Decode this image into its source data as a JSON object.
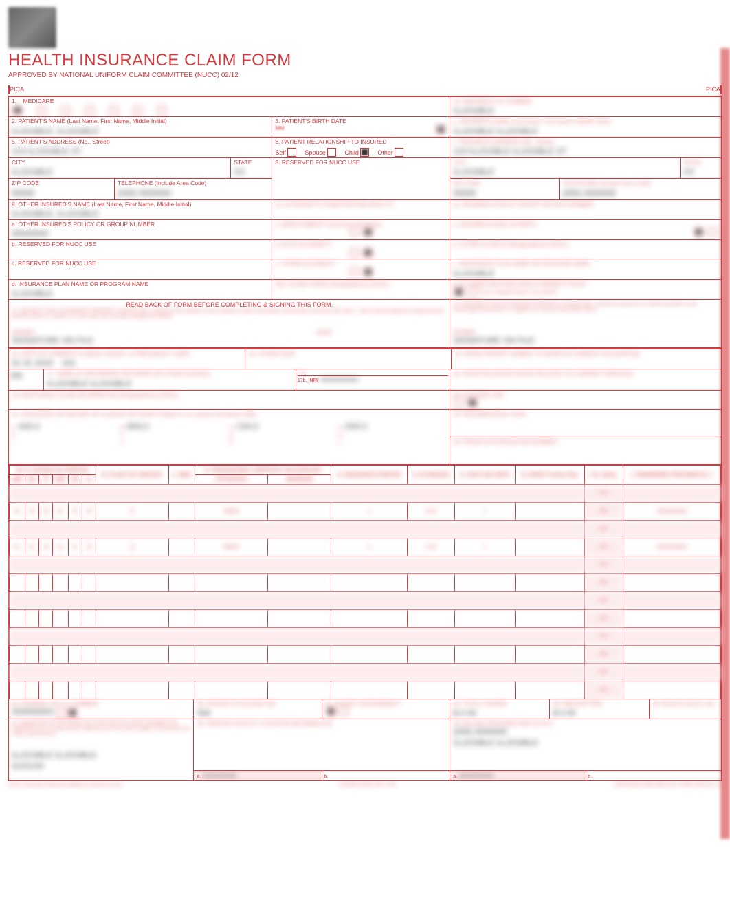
{
  "colors": {
    "red": "#d73a3e",
    "pink": "#fce8e9",
    "text": "#222222",
    "bg": "#ffffff"
  },
  "header": {
    "title": "HEALTH INSURANCE CLAIM FORM",
    "subtitle": "APPROVED BY NATIONAL UNIFORM CLAIM COMMITTEE (NUCC) 02/12",
    "pica": "PICA"
  },
  "box1": {
    "label": "1.",
    "medicare": "MEDICARE",
    "medicaid": "MEDICAID",
    "tricare": "TRICARE",
    "champva": "CHAMPVA",
    "group": "GROUP HEALTH PLAN",
    "feca": "FECA BLK LUNG",
    "other": "OTHER",
    "medicare_sub": "(Medicare #)",
    "medicaid_sub": "(Medicaid #)",
    "tricare_sub": "(ID#/DoD#)",
    "champva_sub": "(Member ID#)",
    "group_sub": "(ID#)",
    "feca_sub": "(ID#)",
    "other_sub": "(ID#)",
    "checked": "medicare"
  },
  "box1a": {
    "label": "1a. INSURED'S I.D. NUMBER",
    "sub": "(For Program in Item 1)",
    "value": "ILLEGIBLE"
  },
  "box2": {
    "label": "2. PATIENT'S NAME (Last Name, First Name, Middle Initial)",
    "value": "ILLEGIBLE, ILLEGIBLE"
  },
  "box3": {
    "label": "3. PATIENT'S BIRTH DATE",
    "mm": "MM",
    "dd": "DD",
    "yy": "YY",
    "sex": "SEX",
    "m": "M",
    "f": "F",
    "value_mm": "01",
    "value_dd": "01",
    "value_yy": "1950",
    "checked": "m"
  },
  "box4": {
    "label": "4. INSURED'S NAME (Last Name, First Name, Middle Initial)",
    "value": "ILLEGIBLE ILLEGIBLE"
  },
  "box5": {
    "label": "5. PATIENT'S ADDRESS (No., Street)",
    "value": "123 ILLEGIBLE ST",
    "city_lbl": "CITY",
    "state_lbl": "STATE",
    "city": "ILLEGIBLE",
    "state": "XX",
    "zip_lbl": "ZIP CODE",
    "tel_lbl": "TELEPHONE (Include Area Code)",
    "zip": "00000",
    "tel_area": "(000)",
    "tel": "0000000"
  },
  "box6": {
    "label": "6. PATIENT RELATIONSHIP TO INSURED",
    "self": "Self",
    "spouse": "Spouse",
    "child": "Child",
    "other": "Other",
    "checked": "child"
  },
  "box7": {
    "label": "7. INSURED'S ADDRESS (No., Street)",
    "value": "123 ILLEGIBLE ILLEGIBLE ST",
    "city_lbl": "CITY",
    "state_lbl": "STATE",
    "city": "ILLEGIBLE",
    "state": "XX",
    "zip_lbl": "ZIP CODE",
    "tel_lbl": "TELEPHONE (Include Area Code)",
    "zip": "00000",
    "tel_area": "(000)",
    "tel": "0000000"
  },
  "box8": {
    "label": "8. RESERVED FOR NUCC USE"
  },
  "box9": {
    "label": "9. OTHER INSURED'S NAME (Last Name, First Name, Middle Initial)",
    "value": "ILLEGIBLE, ILLEGIBLE"
  },
  "box9a": {
    "label": "a. OTHER INSURED'S POLICY OR GROUP NUMBER",
    "value": "00000000"
  },
  "box9b": {
    "label": "b. RESERVED FOR NUCC USE"
  },
  "box9c": {
    "label": "c. RESERVED FOR NUCC USE"
  },
  "box9d": {
    "label": "d. INSURANCE PLAN NAME OR PROGRAM NAME",
    "value": "ILLEGIBLE"
  },
  "box10": {
    "label": "10. IS PATIENT'S CONDITION RELATED TO:",
    "a": "a. EMPLOYMENT? (Current or Previous)",
    "b": "b. AUTO ACCIDENT?",
    "c": "c. OTHER ACCIDENT?",
    "yes": "YES",
    "no": "NO",
    "place": "PLACE (State)",
    "a_chk": "no",
    "b_chk": "no",
    "c_chk": "no",
    "d": "10d. CLAIM CODES (Designated by NUCC)"
  },
  "box11": {
    "label": "11. INSURED'S POLICY GROUP OR FECA NUMBER",
    "value": "",
    "a": "a. INSURED'S DATE OF BIRTH",
    "sex": "SEX",
    "b": "b. OTHER CLAIM ID (Designated by NUCC)",
    "c": "c. INSURANCE PLAN NAME OR PROGRAM NAME",
    "c_val": "ILLEGIBLE",
    "d": "d. IS THERE ANOTHER HEALTH BENEFIT PLAN?",
    "d_sub": "If yes, complete items 9, 9a, and 9d.",
    "d_chk": "yes"
  },
  "box12": {
    "header": "READ BACK OF FORM BEFORE COMPLETING & SIGNING THIS FORM.",
    "label": "12. PATIENT'S OR AUTHORIZED PERSON'S SIGNATURE I authorize the release of any medical or other information necessary to process this claim. I also request payment of government benefits either to myself or to the party who accepts assignment below.",
    "signed": "SIGNED",
    "date": "DATE",
    "sig_val": "SIGNATURE ON FILE",
    "date_val": ""
  },
  "box13": {
    "label": "13. INSURED'S OR AUTHORIZED PERSON'S SIGNATURE I authorize payment of medical benefits to the undersigned physician or supplier for services described below.",
    "signed": "SIGNED",
    "sig_val": "SIGNATURE ON FILE"
  },
  "box14": {
    "label": "14. DATE OF CURRENT ILLNESS, INJURY, or PREGNANCY (LMP)",
    "mm": "01",
    "dd": "01",
    "yy": "2020",
    "qual": "QUAL",
    "qual_val": "431"
  },
  "box15": {
    "label": "15. OTHER DATE",
    "qual": "QUAL"
  },
  "box16": {
    "label": "16. DATES PATIENT UNABLE TO WORK IN CURRENT OCCUPATION",
    "from": "FROM",
    "to": "TO"
  },
  "box17": {
    "label": "17. NAME OF REFERRING PROVIDER OR OTHER SOURCE",
    "prefix": "DN",
    "value": "ILLEGIBLE ILLEGIBLE",
    "a": "17a.",
    "b": "17b.",
    "npi": "NPI",
    "npi_val": "0000000000"
  },
  "box18": {
    "label": "18. HOSPITALIZATION DATES RELATED TO CURRENT SERVICES",
    "from": "FROM",
    "to": "TO"
  },
  "box19": {
    "label": "19. ADDITIONAL CLAIM INFORMATION (Designated by NUCC)"
  },
  "box20": {
    "label": "20. OUTSIDE LAB?",
    "yes": "YES",
    "no": "NO",
    "charges": "$ CHARGES",
    "chk": "no"
  },
  "box21": {
    "label": "21. DIAGNOSIS OR NATURE OF ILLNESS OR INJURY Relate A-L to service line below (24E)",
    "icd": "ICD Ind.",
    "icd_val": "0",
    "codes": {
      "A": "A00.0",
      "B": "B00.0",
      "C": "C00.0",
      "D": "D00.0",
      "E": "",
      "F": "",
      "G": "",
      "H": "",
      "I": "",
      "J": "",
      "K": "",
      "L": ""
    }
  },
  "box22": {
    "label": "22. RESUBMISSION CODE",
    "orig": "ORIGINAL REF. NO."
  },
  "box23": {
    "label": "23. PRIOR AUTHORIZATION NUMBER",
    "value": ""
  },
  "box24": {
    "headers": {
      "a": "24. A. DATE(S) OF SERVICE",
      "from": "From",
      "to": "To",
      "b": "B. PLACE OF SERVICE",
      "c": "C. EMG",
      "d": "D. PROCEDURES, SERVICES, OR SUPPLIES",
      "d2": "(Explain Unusual Circumstances)",
      "cpt": "CPT/HCPCS",
      "mod": "MODIFIER",
      "e": "E. DIAGNOSIS POINTER",
      "f": "F. $ CHARGES",
      "g": "G. DAYS OR UNITS",
      "h": "H. EPSDT Family Plan",
      "i": "I. ID. QUAL.",
      "j": "J. RENDERING PROVIDER ID. #",
      "mm": "MM",
      "dd": "DD",
      "yy": "YY"
    },
    "rows": [
      {
        "from_mm": "01",
        "from_dd": "01",
        "from_yy": "20",
        "to_mm": "01",
        "to_dd": "01",
        "to_yy": "20",
        "pos": "11",
        "emg": "",
        "cpt": "99000",
        "mod": "",
        "dx": "A",
        "chg": "0 00",
        "units": "1",
        "npi": "NPI",
        "render": "0000000000"
      },
      {
        "from_mm": "01",
        "from_dd": "01",
        "from_yy": "20",
        "to_mm": "01",
        "to_dd": "01",
        "to_yy": "20",
        "pos": "11",
        "emg": "",
        "cpt": "99000",
        "mod": "",
        "dx": "A",
        "chg": "0 00",
        "units": "1",
        "npi": "NPI",
        "render": "0000000000"
      },
      {
        "from_mm": "",
        "from_dd": "",
        "from_yy": "",
        "to_mm": "",
        "to_dd": "",
        "to_yy": "",
        "pos": "",
        "emg": "",
        "cpt": "",
        "mod": "",
        "dx": "",
        "chg": "",
        "units": "",
        "npi": "NPI",
        "render": ""
      },
      {
        "from_mm": "",
        "from_dd": "",
        "from_yy": "",
        "to_mm": "",
        "to_dd": "",
        "to_yy": "",
        "pos": "",
        "emg": "",
        "cpt": "",
        "mod": "",
        "dx": "",
        "chg": "",
        "units": "",
        "npi": "NPI",
        "render": ""
      },
      {
        "from_mm": "",
        "from_dd": "",
        "from_yy": "",
        "to_mm": "",
        "to_dd": "",
        "to_yy": "",
        "pos": "",
        "emg": "",
        "cpt": "",
        "mod": "",
        "dx": "",
        "chg": "",
        "units": "",
        "npi": "NPI",
        "render": ""
      },
      {
        "from_mm": "",
        "from_dd": "",
        "from_yy": "",
        "to_mm": "",
        "to_dd": "",
        "to_yy": "",
        "pos": "",
        "emg": "",
        "cpt": "",
        "mod": "",
        "dx": "",
        "chg": "",
        "units": "",
        "npi": "NPI",
        "render": ""
      }
    ]
  },
  "box25": {
    "label": "25. FEDERAL TAX I.D. NUMBER",
    "ssn": "SSN",
    "ein": "EIN",
    "value": "000000000",
    "chk": "ein"
  },
  "box26": {
    "label": "26. PATIENT'S ACCOUNT NO.",
    "value": "000"
  },
  "box27": {
    "label": "27. ACCEPT ASSIGNMENT?",
    "sub": "(For govt. claims, see back)",
    "yes": "YES",
    "no": "NO",
    "chk": "yes"
  },
  "box28": {
    "label": "28. TOTAL CHARGE",
    "value": "$ 0 00"
  },
  "box29": {
    "label": "29. AMOUNT PAID",
    "value": "$ 0 00"
  },
  "box30": {
    "label": "30. Rsvd for NUCC Use"
  },
  "box31": {
    "label": "31. SIGNATURE OF PHYSICIAN OR SUPPLIER INCLUDING DEGREES OR CREDENTIALS (I certify that the statements on the reverse apply to this bill and are made a part thereof.)",
    "sig": "ILLEGIBLE ILLEGIBLE",
    "date": "01/01/20"
  },
  "box32": {
    "label": "32. SERVICE FACILITY LOCATION INFORMATION",
    "a": "a.",
    "b": "b.",
    "npi": "0000000000"
  },
  "box33": {
    "label": "33. BILLING PROVIDER INFO & PH #",
    "ph": "(000) 0000000",
    "name": "ILLEGIBLE ILLEGIBLE",
    "addr": "ILLEGIBLE",
    "a": "a.",
    "b": "b.",
    "npi": "0000000000"
  },
  "footer": {
    "nucc": "NUCC Instruction Manual available at: www.nucc.org",
    "back": "PLEASE PRINT OR TYPE",
    "omb": "APPROVED OMB-0938-1197 FORM 1500 (02-12)"
  }
}
